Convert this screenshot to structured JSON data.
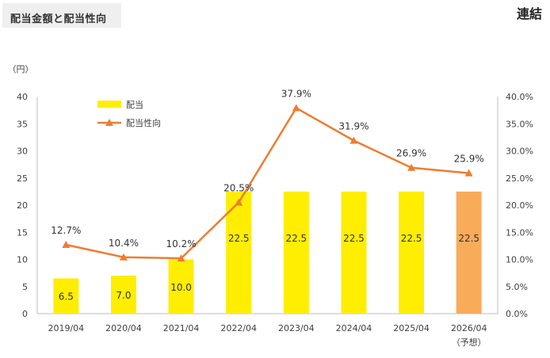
{
  "header": {
    "title": "配当金額と配当性向",
    "corner_label": "連結"
  },
  "colors": {
    "bar": "#ffee00",
    "bar_forecast": "#f8ac5a",
    "line": "#ed7d31",
    "axis": "#bfbfbf"
  },
  "chart_data": {
    "type": "bar",
    "categories": [
      "2019/04",
      "2020/04",
      "2021/04",
      "2022/04",
      "2023/04",
      "2024/04",
      "2025/04",
      "2026/04"
    ],
    "category_notes": [
      "",
      "",
      "",
      "",
      "",
      "",
      "",
      "（予想）"
    ],
    "forecast_index": 7,
    "y_unit": "（円）",
    "ylim": [
      0,
      40
    ],
    "yticks": [
      0,
      5,
      10,
      15,
      20,
      25,
      30,
      35,
      40
    ],
    "y2lim": [
      0,
      40
    ],
    "y2ticks": [
      "0.0%",
      "5.0%",
      "10.0%",
      "15.0%",
      "20.0%",
      "25.0%",
      "30.0%",
      "35.0%",
      "40.0%"
    ],
    "legend_position": "top-left",
    "series": [
      {
        "name": "配当",
        "type": "bar",
        "axis": "left",
        "values": [
          6.5,
          7.0,
          10.0,
          22.5,
          22.5,
          22.5,
          22.5,
          22.5
        ],
        "labels": [
          "6.5",
          "7.0",
          "10.0",
          "22.5",
          "22.5",
          "22.5",
          "22.5",
          "22.5"
        ]
      },
      {
        "name": "配当性向",
        "type": "line",
        "axis": "right",
        "values": [
          12.7,
          10.4,
          10.2,
          20.5,
          37.9,
          31.9,
          26.9,
          25.9
        ],
        "labels": [
          "12.7%",
          "10.4%",
          "10.2%",
          "20.5%",
          "37.9%",
          "31.9%",
          "26.9%",
          "25.9%"
        ]
      }
    ]
  }
}
